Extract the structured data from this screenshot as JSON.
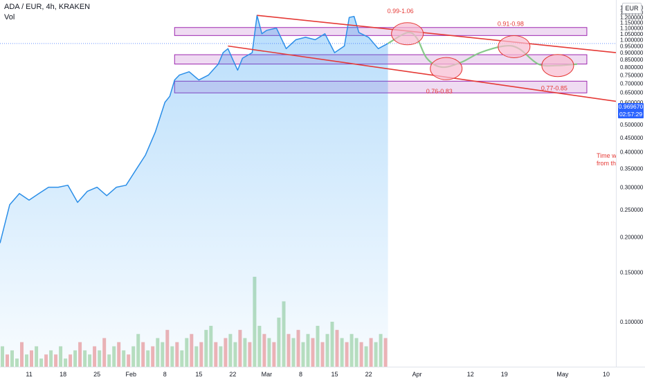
{
  "header": {
    "title": "ADA / EUR, 4h, KRAKEN",
    "volume_label": "Vol",
    "currency": "EUR"
  },
  "last_price": {
    "value": "0.969670",
    "countdown": "02:57:29"
  },
  "colors": {
    "price_line": "#2a8ee8",
    "price_fill": "#2196f3",
    "channel": "#e53935",
    "zone_fill": "#e1bee7",
    "zone_border": "#9c27b0",
    "projection": "#81c784",
    "target_fill": "#f8bbd0",
    "target_border": "#e53935",
    "annotation_text": "#e53935",
    "vol_up": "#a5d6a7",
    "vol_down": "#ef9a9a",
    "price_tag": "#2962ff"
  },
  "annotations": [
    "0.99-1.06",
    "0.91-0.98",
    "0.76-0.83",
    "0.77-0.85",
    "Time w",
    "from th"
  ],
  "chart_data": {
    "type": "line",
    "title": "ADA / EUR, 4h, KRAKEN",
    "xlabel": "",
    "ylabel": "",
    "x_tick_labels": [
      "11",
      "18",
      "25",
      "Feb",
      "8",
      "15",
      "22",
      "Mar",
      "8",
      "15",
      "22",
      "Apr",
      "12",
      "19",
      "May",
      "10"
    ],
    "y_tick_labels": [
      "0.100000",
      "0.150000",
      "0.200000",
      "0.250000",
      "0.300000",
      "0.350000",
      "0.400000",
      "0.450000",
      "0.500000",
      "0.550000",
      "0.600000",
      "0.650000",
      "0.700000",
      "0.750000",
      "0.800000",
      "0.850000",
      "0.900000",
      "0.950000",
      "1.000000",
      "1.050000",
      "1.100000",
      "1.150000",
      "1.200000",
      "1.250000",
      "1.300000",
      "1.350000"
    ],
    "ylim": [
      0.075,
      1.36
    ],
    "xlim": [
      "2021-01-05",
      "2021-05-12"
    ],
    "y_scale": "log",
    "grid": false,
    "legend": "top-left",
    "series": [
      {
        "type": "line",
        "points": [
          [
            "2021-01-05",
            0.19
          ],
          [
            "2021-01-07",
            0.26
          ],
          [
            "2021-01-09",
            0.285
          ],
          [
            "2021-01-11",
            0.27
          ],
          [
            "2021-01-13",
            0.285
          ],
          [
            "2021-01-15",
            0.3
          ],
          [
            "2021-01-17",
            0.3
          ],
          [
            "2021-01-19",
            0.305
          ],
          [
            "2021-01-21",
            0.265
          ],
          [
            "2021-01-23",
            0.29
          ],
          [
            "2021-01-25",
            0.3
          ],
          [
            "2021-01-27",
            0.28
          ],
          [
            "2021-01-29",
            0.3
          ],
          [
            "2021-01-31",
            0.305
          ],
          [
            "2021-02-02",
            0.345
          ],
          [
            "2021-02-04",
            0.39
          ],
          [
            "2021-02-06",
            0.47
          ],
          [
            "2021-02-08",
            0.6
          ],
          [
            "2021-02-09",
            0.63
          ],
          [
            "2021-02-10",
            0.72
          ],
          [
            "2021-02-11",
            0.75
          ],
          [
            "2021-02-13",
            0.77
          ],
          [
            "2021-02-15",
            0.72
          ],
          [
            "2021-02-17",
            0.75
          ],
          [
            "2021-02-19",
            0.82
          ],
          [
            "2021-02-20",
            0.9
          ],
          [
            "2021-02-21",
            0.93
          ],
          [
            "2021-02-22",
            0.85
          ],
          [
            "2021-02-23",
            0.78
          ],
          [
            "2021-02-24",
            0.86
          ],
          [
            "2021-02-26",
            0.9
          ],
          [
            "2021-02-27",
            1.22
          ],
          [
            "2021-02-28",
            1.05
          ],
          [
            "2021-03-01",
            1.08
          ],
          [
            "2021-03-03",
            1.1
          ],
          [
            "2021-03-05",
            0.93
          ],
          [
            "2021-03-07",
            1.0
          ],
          [
            "2021-03-09",
            1.02
          ],
          [
            "2021-03-11",
            1.0
          ],
          [
            "2021-03-13",
            1.05
          ],
          [
            "2021-03-15",
            0.9
          ],
          [
            "2021-03-17",
            0.95
          ],
          [
            "2021-03-18",
            1.2
          ],
          [
            "2021-03-19",
            1.21
          ],
          [
            "2021-03-20",
            1.06
          ],
          [
            "2021-03-22",
            1.02
          ],
          [
            "2021-03-24",
            0.93
          ],
          [
            "2021-03-26",
            0.97
          ]
        ]
      },
      {
        "type": "projection",
        "points": [
          [
            "2021-03-26",
            0.97
          ],
          [
            "2021-03-30",
            1.06
          ],
          [
            "2021-04-01",
            1.01
          ],
          [
            "2021-04-03",
            0.86
          ],
          [
            "2021-04-06",
            0.8
          ],
          [
            "2021-04-10",
            0.83
          ],
          [
            "2021-04-14",
            0.9
          ],
          [
            "2021-04-19",
            0.95
          ],
          [
            "2021-04-22",
            0.93
          ],
          [
            "2021-04-26",
            0.82
          ],
          [
            "2021-04-30",
            0.81
          ],
          [
            "2021-05-04",
            0.82
          ]
        ]
      },
      {
        "type": "channel",
        "lines": [
          [
            [
              "2021-02-27",
              1.22
            ],
            [
              "2021-05-12",
              0.9
            ]
          ],
          [
            [
              "2021-02-21",
              0.95
            ],
            [
              "2021-05-12",
              0.605
            ]
          ]
        ]
      },
      {
        "type": "zones",
        "boxes": [
          {
            "from": "2021-02-10",
            "to": "2021-05-06",
            "y1": 1.035,
            "y2": 1.105
          },
          {
            "from": "2021-02-10",
            "to": "2021-05-06",
            "y1": 0.82,
            "y2": 0.885
          },
          {
            "from": "2021-02-10",
            "to": "2021-05-06",
            "y1": 0.648,
            "y2": 0.713
          }
        ]
      },
      {
        "type": "targets",
        "points": [
          [
            "2021-03-30",
            1.05,
            "0.99-1.06"
          ],
          [
            "2021-04-21",
            0.945,
            "0.91-0.98"
          ],
          [
            "2021-04-07",
            0.79,
            "0.76-0.83"
          ],
          [
            "2021-04-30",
            0.81,
            "0.77-0.85"
          ]
        ]
      }
    ],
    "volume": {
      "from": "2021-01-05",
      "to": "2021-03-26",
      "values": [
        0.5,
        0.3,
        0.4,
        0.2,
        0.6,
        0.3,
        0.4,
        0.5,
        0.2,
        0.3,
        0.4,
        0.3,
        0.5,
        0.2,
        0.3,
        0.4,
        0.6,
        0.4,
        0.3,
        0.5,
        0.4,
        0.7,
        0.3,
        0.5,
        0.6,
        0.4,
        0.3,
        0.5,
        0.8,
        0.6,
        0.4,
        0.5,
        0.7,
        0.6,
        0.9,
        0.5,
        0.6,
        0.4,
        0.7,
        0.8,
        0.5,
        0.6,
        0.9,
        1.0,
        0.6,
        0.5,
        0.7,
        0.8,
        0.6,
        0.9,
        0.7,
        0.6,
        2.2,
        1.0,
        0.8,
        0.7,
        0.6,
        1.2,
        1.6,
        0.8,
        0.7,
        0.9,
        0.6,
        0.8,
        0.7,
        1.0,
        0.6,
        0.8,
        1.1,
        0.9,
        0.7,
        0.6,
        0.8,
        0.7,
        0.6,
        0.5,
        0.7,
        0.6,
        0.8,
        0.7
      ],
      "up_pattern": [
        1,
        0,
        1,
        1,
        0
      ]
    }
  }
}
